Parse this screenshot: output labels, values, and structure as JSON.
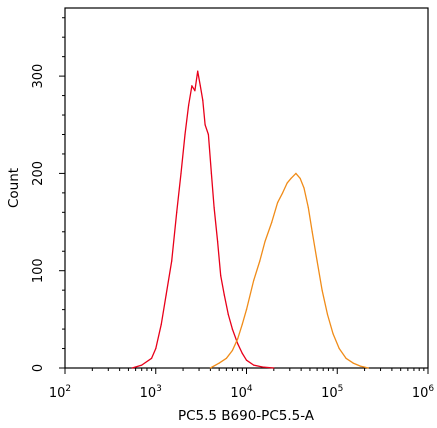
{
  "chart_data": {
    "type": "line",
    "title": "",
    "xlabel": "PC5.5 B690-PC5.5-A",
    "ylabel": "Count",
    "x_scale": "log",
    "xlim": [
      100,
      1000000
    ],
    "ylim": [
      0,
      370
    ],
    "x_ticks": [
      {
        "value": 100,
        "base": "10",
        "exp": "2"
      },
      {
        "value": 1000,
        "base": "10",
        "exp": "3"
      },
      {
        "value": 10000,
        "base": "10",
        "exp": "4"
      },
      {
        "value": 100000,
        "base": "10",
        "exp": "5"
      },
      {
        "value": 1000000,
        "base": "10",
        "exp": "6"
      }
    ],
    "y_ticks": [
      {
        "value": 0,
        "label": "0"
      },
      {
        "value": 100,
        "label": "100"
      },
      {
        "value": 200,
        "label": "200"
      },
      {
        "value": 300,
        "label": "300"
      }
    ],
    "grid": false,
    "legend": "none",
    "series": [
      {
        "color": "#e8001a",
        "x": [
          550,
          700,
          900,
          1000,
          1150,
          1300,
          1500,
          1700,
          1900,
          2100,
          2300,
          2500,
          2700,
          2900,
          3100,
          3300,
          3500,
          3800,
          4100,
          4400,
          4800,
          5200,
          5700,
          6300,
          7000,
          8000,
          9000,
          10000,
          12000,
          15000,
          20000
        ],
        "y": [
          0,
          3,
          10,
          20,
          45,
          75,
          110,
          160,
          200,
          240,
          270,
          290,
          285,
          305,
          290,
          275,
          250,
          240,
          200,
          165,
          130,
          95,
          75,
          55,
          40,
          25,
          15,
          8,
          3,
          1,
          0
        ]
      },
      {
        "color": "#f08c19",
        "x": [
          4000,
          5000,
          6000,
          7000,
          8000,
          9000,
          10000,
          12000,
          14000,
          16000,
          19000,
          22000,
          25000,
          28000,
          31000,
          35000,
          39000,
          43000,
          48000,
          53000,
          60000,
          68000,
          78000,
          90000,
          105000,
          125000,
          150000,
          180000,
          220000
        ],
        "y": [
          0,
          5,
          10,
          18,
          30,
          45,
          60,
          90,
          110,
          130,
          150,
          170,
          180,
          190,
          195,
          200,
          195,
          185,
          165,
          140,
          110,
          80,
          55,
          35,
          20,
          10,
          5,
          2,
          0
        ]
      }
    ]
  }
}
